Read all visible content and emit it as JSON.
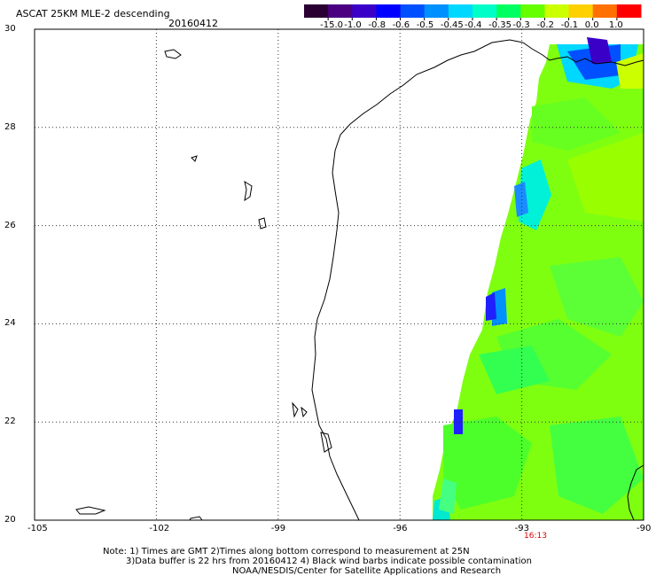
{
  "header": {
    "title": "ASCAT 25KM MLE-2 descending",
    "date": "20160412"
  },
  "colorbar": {
    "labels": [
      "-15.0",
      "-1.0",
      "-0.8",
      "-0.6",
      "-0.5",
      "-0.45",
      "-0.4",
      "-0.35",
      "-0.3",
      "-0.2",
      "-0.1",
      "0.0",
      "1.0"
    ],
    "colors": [
      "#2a0033",
      "#4b0082",
      "#3a00c8",
      "#0000ff",
      "#0050ff",
      "#0090ff",
      "#00d8ff",
      "#00ffc8",
      "#00ff60",
      "#66ff00",
      "#ccff00",
      "#ffd000",
      "#ff7000",
      "#ff0000"
    ]
  },
  "axes": {
    "lat_labels": [
      "30",
      "28",
      "26",
      "24",
      "22",
      "20"
    ],
    "lon_labels": [
      "-105",
      "-102",
      "-99",
      "-96",
      "-93",
      "-90"
    ],
    "lat_range": [
      20,
      30
    ],
    "lon_range": [
      -105,
      -90
    ],
    "grid": "dotted"
  },
  "pass_time": "16:13",
  "footer": {
    "line1": "Note: 1) Times are GMT 2)Times along bottom correspond to measurement at 25N",
    "line2": "3)Data buffer is 22 hrs from 20160412 4) Black wind barbs indicate possible contamination",
    "line3": "NOAA/NESDIS/Center for Satellite Applications and Research"
  }
}
